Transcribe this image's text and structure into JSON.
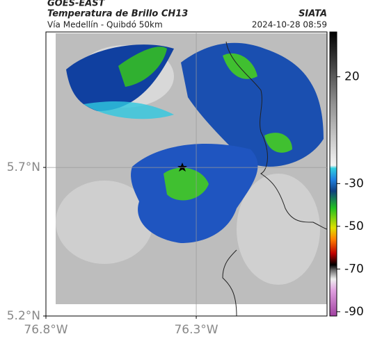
{
  "header": {
    "source": "GOES-EAST",
    "title": "Temperatura de Brillo CH13",
    "subtitle": "Vía Medellín - Quibdó 50km",
    "agency": "SIATA",
    "datetime": "2024-10-28 08:59"
  },
  "map": {
    "lon_range": [
      -76.8,
      -75.865
    ],
    "lat_range": [
      5.2,
      6.156
    ],
    "lon_ticks": [
      {
        "value": -76.8,
        "label": "76.8°W"
      },
      {
        "value": -76.3,
        "label": "76.3°W"
      }
    ],
    "lat_ticks": [
      {
        "value": 5.7,
        "label": "5.7°N"
      },
      {
        "value": 5.2,
        "label": "5.2°N"
      }
    ],
    "grid": true
  },
  "colorbar": {
    "range": [
      -92,
      41
    ],
    "ticks": [
      20,
      -30,
      -50,
      -70,
      -90
    ]
  }
}
